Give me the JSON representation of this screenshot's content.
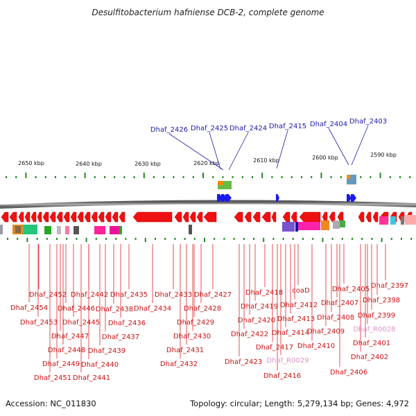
{
  "title": "Desulfitobacterium hafniense DCB-2, complete genome",
  "footer": {
    "accession": "Accession: NC_011830",
    "summary": "Topology: circular; Length: 5,279,134 bp; Genes: 4,972"
  },
  "ruler": [
    "2650 kbp",
    "2640 kbp",
    "2630 kbp",
    "2620 kbp",
    "2610 kbp",
    "2600 kbp",
    "2590 kbp"
  ],
  "top_genes": [
    "Dhaf_2426",
    "Dhaf_2425",
    "Dhaf_2424",
    "Dhaf_2415",
    "Dhaf_2404",
    "Dhaf_2403"
  ],
  "bottom_genes": [
    "Dhaf_2454",
    "Dhaf_2452",
    "Dhaf_2453",
    "Dhaf_2446",
    "Dhaf_2442",
    "Dhaf_2445",
    "Dhaf_2447",
    "Dhaf_2448",
    "Dhaf_2449",
    "Dhaf_2451",
    "Dhaf_2441",
    "Dhaf_2440",
    "Dhaf_2439",
    "Dhaf_2438",
    "Dhaf_2437",
    "Dhaf_2436",
    "Dhaf_2435",
    "Dhaf_2434",
    "Dhaf_2433",
    "Dhaf_2432",
    "Dhaf_2431",
    "Dhaf_2430",
    "Dhaf_2429",
    "Dhaf_2428",
    "Dhaf_2427",
    "Dhaf_2423",
    "Dhaf_2422",
    "Dhaf_2420",
    "Dhaf_2419",
    "Dhaf_2418",
    "Dhaf_2417",
    "Dhaf_R0029",
    "Dhaf_2416",
    "Dhaf_2414",
    "Dhaf_2413",
    "Dhaf_2412",
    "coaD",
    "Dhaf_2410",
    "Dhaf_2409",
    "Dhaf_2408",
    "Dhaf_2407",
    "Dhaf_2406",
    "Dhaf_2405",
    "Dhaf_2402",
    "Dhaf_2401",
    "Dhaf_R0028",
    "Dhaf_2399",
    "Dhaf_2398",
    "Dhaf_2397"
  ],
  "colors": {
    "forward": "#1a1aee",
    "reverse": "#ee1111",
    "leader": "#dd2222",
    "top_label": "#1a1aaa",
    "rna_label": "#e090c8",
    "backbone": "#808080",
    "tick": "#228822"
  }
}
